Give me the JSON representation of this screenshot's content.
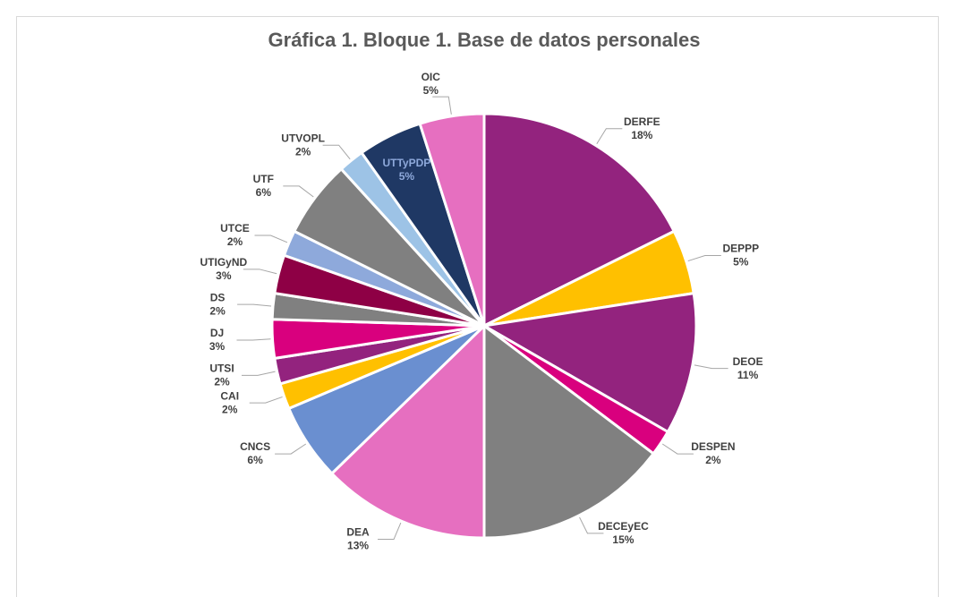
{
  "chart_data": {
    "type": "pie",
    "title": "Gráfica 1. Bloque 1. Base de datos personales",
    "categories": [
      "DERFE",
      "DEPPP",
      "DEOE",
      "DESPEN",
      "DECEyEC",
      "DEA",
      "CNCS",
      "CAI",
      "UTSI",
      "DJ",
      "DS",
      "UTIGyND",
      "UTCE",
      "UTF",
      "UTVOPL",
      "UTTyPDP",
      "OIC"
    ],
    "values": [
      18,
      5,
      11,
      2,
      15,
      13,
      6,
      2,
      2,
      3,
      2,
      3,
      2,
      6,
      2,
      5,
      5
    ],
    "value_labels": [
      "18%",
      "5%",
      "11%",
      "2%",
      "15%",
      "13%",
      "6%",
      "2%",
      "2%",
      "3%",
      "2%",
      "3%",
      "2%",
      "6%",
      "2%",
      "5%",
      "5%"
    ],
    "colors": [
      "#93237e",
      "#ffc000",
      "#93237e",
      "#d9007e",
      "#808080",
      "#e66fc0",
      "#6a8fd0",
      "#ffc000",
      "#93237e",
      "#d9007e",
      "#808080",
      "#8e0045",
      "#8ea9db",
      "#808080",
      "#9dc3e6",
      "#1f3864",
      "#e66fc0"
    ]
  }
}
